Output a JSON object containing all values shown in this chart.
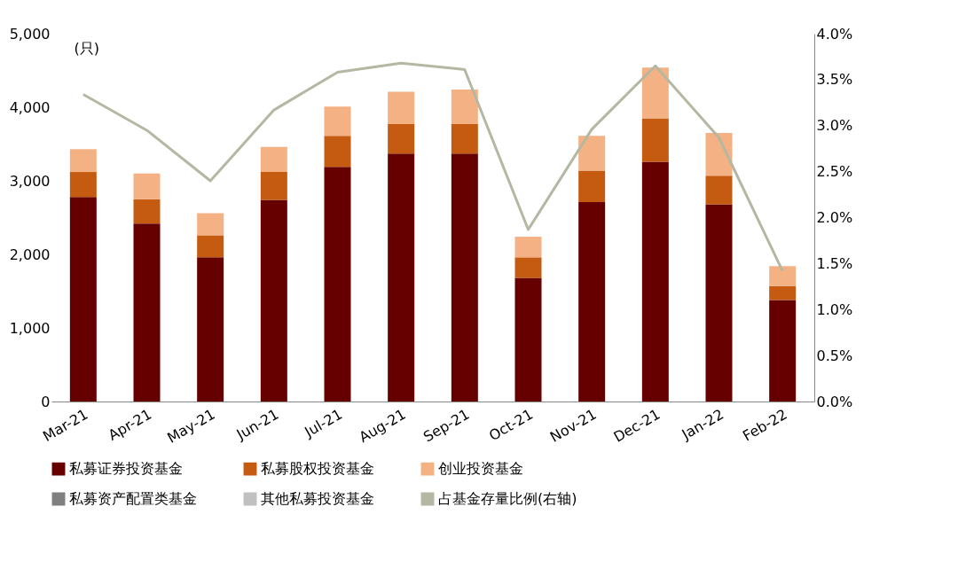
{
  "chart_data": {
    "type": "bar",
    "stacked": true,
    "ylabel": "(只)",
    "categories": [
      "Mar-21",
      "Apr-21",
      "May-21",
      "Jun-21",
      "Jul-21",
      "Aug-21",
      "Sep-21",
      "Oct-21",
      "Nov-21",
      "Dec-21",
      "Jan-22",
      "Feb-22"
    ],
    "series": [
      {
        "name": "私募证券投资基金",
        "color": "#660000",
        "values": [
          2780,
          2420,
          1960,
          2740,
          3190,
          3370,
          3370,
          1680,
          2710,
          3260,
          2680,
          1380
        ]
      },
      {
        "name": "私募股权投资基金",
        "color": "#c55a11",
        "values": [
          340,
          330,
          300,
          380,
          420,
          400,
          400,
          280,
          430,
          590,
          390,
          190
        ]
      },
      {
        "name": "创业投资基金",
        "color": "#f4b183",
        "values": [
          310,
          350,
          300,
          340,
          400,
          440,
          470,
          280,
          470,
          690,
          580,
          270
        ]
      },
      {
        "name": "私募资产配置类基金",
        "color": "#808080",
        "values": [
          0,
          0,
          0,
          0,
          0,
          0,
          0,
          0,
          0,
          0,
          0,
          0
        ]
      },
      {
        "name": "其他私募投资基金",
        "color": "#c0c0c0",
        "values": [
          0,
          0,
          0,
          0,
          0,
          0,
          0,
          0,
          0,
          0,
          0,
          0
        ]
      },
      {
        "name": "占基金存量比例(右轴)",
        "color": "#b4b8a2",
        "type": "line",
        "axis": "y2",
        "values": [
          3.34,
          2.95,
          2.4,
          3.17,
          3.58,
          3.68,
          3.61,
          1.87,
          2.96,
          3.65,
          2.87,
          1.42
        ]
      }
    ],
    "ylim": [
      0,
      5000
    ],
    "yticks": [
      {
        "value": 0,
        "label": "0"
      },
      {
        "value": 1000,
        "label": "1,000"
      },
      {
        "value": 2000,
        "label": "2,000"
      },
      {
        "value": 3000,
        "label": "3,000"
      },
      {
        "value": 4000,
        "label": "4,000"
      },
      {
        "value": 5000,
        "label": "5,000"
      }
    ],
    "y2lim": [
      0,
      4
    ],
    "y2ticks": [
      {
        "value": 0,
        "label": "0.0%"
      },
      {
        "value": 0.5,
        "label": "0.5%"
      },
      {
        "value": 1,
        "label": "1.0%"
      },
      {
        "value": 1.5,
        "label": "1.5%"
      },
      {
        "value": 2,
        "label": "2.0%"
      },
      {
        "value": 2.5,
        "label": "2.5%"
      },
      {
        "value": 3,
        "label": "3.0%"
      },
      {
        "value": 3.5,
        "label": "3.5%"
      },
      {
        "value": 4,
        "label": "4.0%"
      }
    ],
    "grid": false,
    "legend": "bottom",
    "marker": "none",
    "line_style": "solid"
  }
}
